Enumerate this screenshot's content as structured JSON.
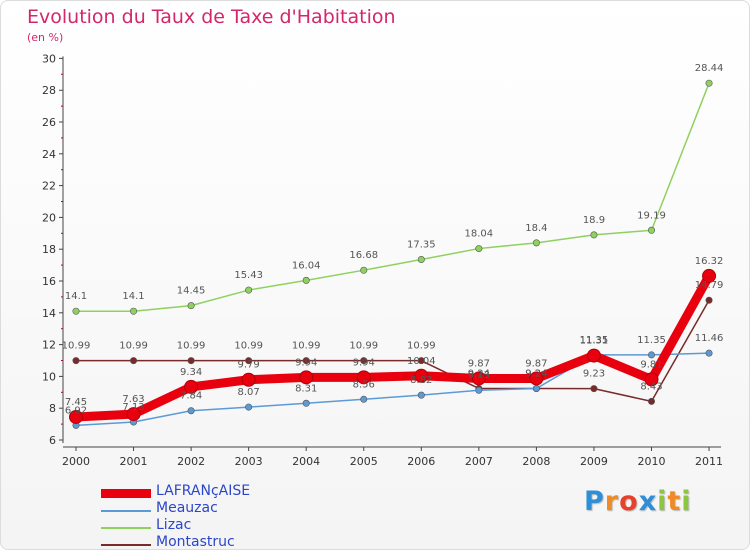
{
  "chart_data": {
    "type": "line",
    "title": "Evolution du Taux de Taxe d'Habitation",
    "subtitle": "(en %)",
    "x": [
      "2000",
      "2001",
      "2002",
      "2003",
      "2004",
      "2005",
      "2006",
      "2007",
      "2008",
      "2009",
      "2010",
      "2011"
    ],
    "ylim": [
      6,
      30
    ],
    "yticks": [
      6,
      8,
      10,
      12,
      14,
      16,
      18,
      20,
      22,
      24,
      26,
      28,
      30
    ],
    "grid": false,
    "legend_position": "bottom-left",
    "series": [
      {
        "name": "LAFRANçAISE",
        "color": "#e8000e",
        "values": [
          7.45,
          7.63,
          9.34,
          9.79,
          9.94,
          9.94,
          10.04,
          9.87,
          9.87,
          11.31,
          9.81,
          16.32
        ]
      },
      {
        "name": "Meauzac",
        "color": "#5b9ad6",
        "values": [
          6.92,
          7.13,
          7.84,
          8.07,
          8.31,
          8.56,
          8.82,
          9.13,
          9.24,
          11.35,
          11.35,
          11.46
        ]
      },
      {
        "name": "Lizac",
        "color": "#8fd15f",
        "values": [
          14.1,
          14.1,
          14.45,
          15.43,
          16.04,
          16.68,
          17.35,
          18.04,
          18.4,
          18.9,
          19.19,
          28.44
        ]
      },
      {
        "name": "Montastruc",
        "color": "#7a2a2a",
        "values": [
          10.99,
          10.99,
          10.99,
          10.99,
          10.99,
          10.99,
          10.99,
          9.24,
          9.24,
          9.23,
          8.43,
          14.79
        ]
      }
    ]
  },
  "logo": {
    "letters": [
      {
        "char": "P",
        "color": "#2e8fd6"
      },
      {
        "char": "r",
        "color": "#f08a24"
      },
      {
        "char": "o",
        "color": "#e8412b"
      },
      {
        "char": "x",
        "color": "#2e8fd6"
      },
      {
        "char": "i",
        "color": "#8cc63f"
      },
      {
        "char": "t",
        "color": "#f08a24"
      },
      {
        "char": "i",
        "color": "#8cc63f"
      }
    ]
  }
}
